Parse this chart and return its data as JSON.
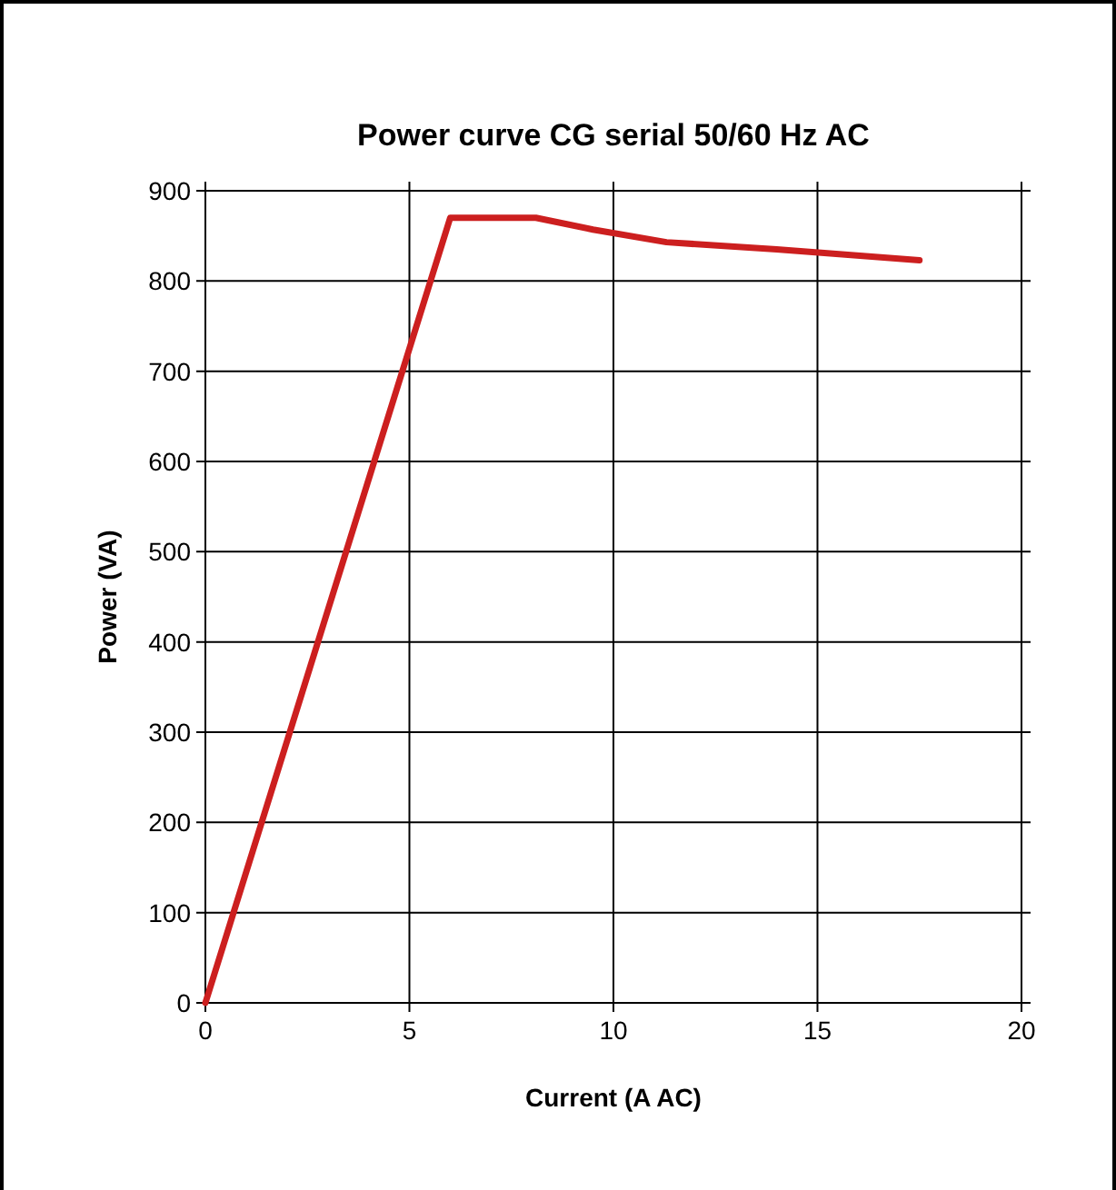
{
  "chart_data": {
    "type": "line",
    "title": "Power curve CG serial 50/60 Hz AC",
    "xlabel": "Current (A AC)",
    "ylabel": "Power (VA)",
    "series": [
      {
        "color": "#cc1f1f",
        "x": [
          0,
          6,
          8.1,
          9.5,
          11.3,
          14,
          17.5
        ],
        "values": [
          0,
          870,
          870,
          857,
          843,
          835,
          823
        ]
      }
    ],
    "xlim": [
      0,
      20
    ],
    "xticks": [
      0,
      5,
      10,
      15,
      20
    ],
    "ylim": [
      0,
      900
    ],
    "yticks": [
      0,
      100,
      200,
      300,
      400,
      500,
      600,
      700,
      800,
      900
    ],
    "grid": true,
    "marker": "none",
    "line_style": "solid"
  }
}
